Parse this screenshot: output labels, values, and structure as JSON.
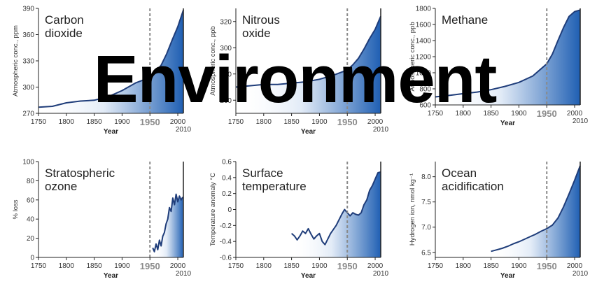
{
  "overlay_title": "Environment",
  "colors": {
    "line": "#1f3d7a",
    "fill_dark": "#1f5fb3",
    "fill_light": "#ffffff",
    "axis": "#222222",
    "reference_line": "#8a8a8a"
  },
  "chart_data": [
    {
      "type": "area",
      "title_lines": [
        "Carbon",
        "dioxide"
      ],
      "xlabel": "Year",
      "ylabel": "Atmospheric conc., ppm",
      "xticks": [
        1750,
        1800,
        1850,
        1900,
        1950,
        2000
      ],
      "xtick_labels": [
        "1750",
        "1800",
        "1850",
        "1900",
        "1950",
        "2000"
      ],
      "extra_x_label": "2010",
      "reference_x": 1950,
      "xlim": [
        1750,
        2010
      ],
      "yticks": [
        270,
        300,
        330,
        360,
        390
      ],
      "ytick_labels": [
        "270",
        "300",
        "330",
        "360",
        "390"
      ],
      "ylim": [
        270,
        390
      ],
      "x": [
        1750,
        1775,
        1800,
        1825,
        1850,
        1875,
        1900,
        1925,
        1950,
        1960,
        1970,
        1980,
        1990,
        2000,
        2010
      ],
      "y": [
        277,
        278,
        282,
        284,
        285,
        289,
        296,
        305,
        311,
        317,
        325,
        338,
        354,
        369,
        388
      ]
    },
    {
      "type": "area",
      "title_lines": [
        "Nitrous",
        "oxide"
      ],
      "xlabel": "Year",
      "ylabel": "Atmospheric conc., ppb",
      "xticks": [
        1750,
        1800,
        1850,
        1900,
        1950,
        2000
      ],
      "xtick_labels": [
        "1750",
        "1800",
        "1850",
        "1900",
        "1950",
        "2000"
      ],
      "extra_x_label": "2010",
      "reference_x": 1950,
      "xlim": [
        1750,
        2010
      ],
      "yticks": [
        260,
        280,
        300,
        320
      ],
      "ytick_labels": [
        "260",
        "280",
        "300",
        "320"
      ],
      "ylim": [
        250,
        330
      ],
      "x": [
        1750,
        1775,
        1800,
        1825,
        1850,
        1875,
        1900,
        1925,
        1950,
        1960,
        1970,
        1980,
        1990,
        2000,
        2010
      ],
      "y": [
        270,
        271,
        272,
        272,
        273,
        274,
        276,
        279,
        283,
        287,
        292,
        299,
        307,
        314,
        324
      ]
    },
    {
      "type": "area",
      "title_lines": [
        "Methane"
      ],
      "xlabel": "Year",
      "ylabel": "Atmospheric conc., ppb",
      "xticks": [
        1750,
        1800,
        1850,
        1900,
        1950,
        2000
      ],
      "xtick_labels": [
        "1750",
        "1800",
        "1850",
        "1900",
        "1950",
        "2000"
      ],
      "extra_x_label": "2010",
      "reference_x": 1950,
      "xlim": [
        1750,
        2010
      ],
      "yticks": [
        600,
        800,
        1000,
        1200,
        1400,
        1600,
        1800
      ],
      "ytick_labels": [
        "600",
        "800",
        "1000",
        "1200",
        "1400",
        "1600",
        "1800"
      ],
      "ylim": [
        600,
        1800
      ],
      "x": [
        1750,
        1775,
        1800,
        1825,
        1850,
        1875,
        1900,
        1925,
        1950,
        1960,
        1970,
        1980,
        1990,
        2000,
        2010
      ],
      "y": [
        700,
        718,
        740,
        760,
        790,
        830,
        880,
        960,
        1110,
        1230,
        1400,
        1560,
        1700,
        1760,
        1780
      ]
    },
    {
      "type": "area",
      "title_lines": [
        "Stratospheric",
        "ozone"
      ],
      "xlabel": "Year",
      "ylabel": "% loss",
      "xticks": [
        1750,
        1800,
        1850,
        1900,
        1950,
        2000
      ],
      "xtick_labels": [
        "1750",
        "1800",
        "1850",
        "1900",
        "1950",
        "2000"
      ],
      "extra_x_label": "2010",
      "reference_x": 1950,
      "xlim": [
        1750,
        2010
      ],
      "yticks": [
        0,
        20,
        40,
        60,
        80,
        100
      ],
      "ytick_labels": [
        "0",
        "20",
        "40",
        "60",
        "80",
        "100"
      ],
      "ylim": [
        0,
        100
      ],
      "x": [
        1955,
        1958,
        1961,
        1964,
        1967,
        1970,
        1973,
        1976,
        1979,
        1982,
        1985,
        1988,
        1991,
        1994,
        1997,
        2000,
        2003,
        2006,
        2009
      ],
      "y": [
        10,
        6,
        14,
        8,
        18,
        12,
        22,
        26,
        35,
        40,
        52,
        48,
        62,
        55,
        66,
        58,
        64,
        60,
        63
      ]
    },
    {
      "type": "area",
      "title_lines": [
        "Surface",
        "temperature"
      ],
      "xlabel": "Year",
      "ylabel": "Temperature anomaly °C",
      "xticks": [
        1750,
        1800,
        1850,
        1900,
        1950,
        2000
      ],
      "xtick_labels": [
        "1750",
        "1800",
        "1850",
        "1900",
        "1950",
        "2000"
      ],
      "extra_x_label": "2010",
      "reference_x": 1950,
      "xlim": [
        1750,
        2010
      ],
      "yticks": [
        -0.6,
        -0.4,
        -0.2,
        0,
        0.2,
        0.4,
        0.6
      ],
      "ytick_labels": [
        "-0.6",
        "-0.4",
        "-0.2",
        "0",
        "0.2",
        "0.4",
        "0.6"
      ],
      "ylim": [
        -0.6,
        0.6
      ],
      "x": [
        1850,
        1855,
        1860,
        1865,
        1870,
        1875,
        1880,
        1885,
        1890,
        1895,
        1900,
        1905,
        1910,
        1920,
        1930,
        1940,
        1945,
        1950,
        1955,
        1960,
        1965,
        1970,
        1975,
        1980,
        1985,
        1990,
        1995,
        2000,
        2005,
        2010
      ],
      "y": [
        -0.3,
        -0.33,
        -0.38,
        -0.33,
        -0.27,
        -0.3,
        -0.24,
        -0.31,
        -0.37,
        -0.33,
        -0.3,
        -0.4,
        -0.44,
        -0.3,
        -0.2,
        -0.06,
        0.0,
        -0.04,
        -0.08,
        -0.04,
        -0.06,
        -0.07,
        -0.04,
        0.06,
        0.12,
        0.24,
        0.3,
        0.38,
        0.46,
        0.47
      ]
    },
    {
      "type": "area",
      "title_lines": [
        "Ocean",
        "acidification"
      ],
      "xlabel": "Year",
      "ylabel": "Hydrogen ion, nmol kg⁻¹",
      "xticks": [
        1750,
        1800,
        1850,
        1900,
        1950,
        2000
      ],
      "xtick_labels": [
        "1750",
        "1800",
        "1850",
        "1900",
        "1950",
        "2000"
      ],
      "extra_x_label": "2010",
      "reference_x": 1950,
      "xlim": [
        1750,
        2010
      ],
      "yticks": [
        6.5,
        7.0,
        7.5,
        8.0
      ],
      "ytick_labels": [
        "6.5",
        "7.0",
        "7.5",
        "8.0"
      ],
      "ylim": [
        6.4,
        8.3
      ],
      "x": [
        1850,
        1860,
        1870,
        1880,
        1890,
        1900,
        1910,
        1920,
        1930,
        1940,
        1950,
        1960,
        1970,
        1980,
        1990,
        2000,
        2010
      ],
      "y": [
        6.52,
        6.55,
        6.58,
        6.62,
        6.67,
        6.71,
        6.76,
        6.81,
        6.86,
        6.92,
        6.97,
        7.04,
        7.18,
        7.4,
        7.66,
        7.93,
        8.22
      ]
    }
  ]
}
